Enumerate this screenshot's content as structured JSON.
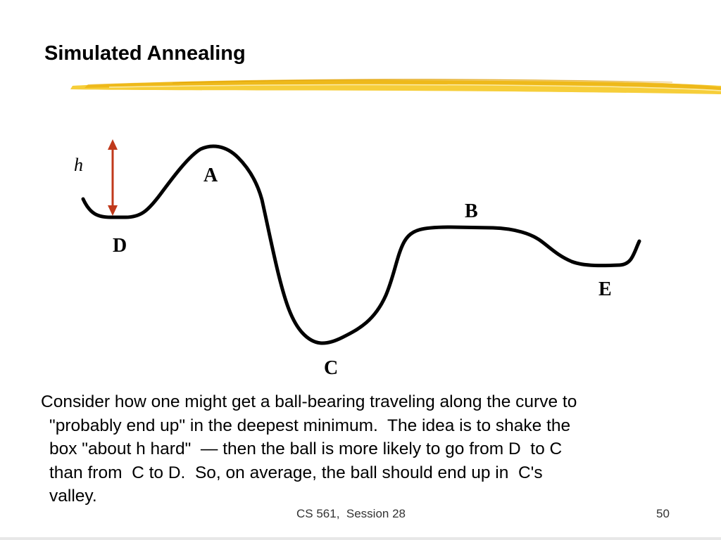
{
  "slide": {
    "title": "Simulated Annealing",
    "diagram": {
      "height_label": "h",
      "points": {
        "a": "A",
        "b": "B",
        "c": "C",
        "d": "D",
        "e": "E"
      },
      "colors": {
        "curve": "#000000",
        "arrow": "#c0391b",
        "highlight": "#f5c518"
      }
    },
    "body_lines": [
      "Consider how one might get a ball-bearing traveling along the curve to",
      "\"probably end up\" in the deepest minimum.  The idea is to shake the",
      "box \"about h hard\"  — then the ball is more likely to go from D  to C",
      "than from  C to D.  So, on average, the ball should end up in  C's",
      "valley."
    ],
    "footer": "CS 561,  Session 28",
    "page_number": "50"
  }
}
